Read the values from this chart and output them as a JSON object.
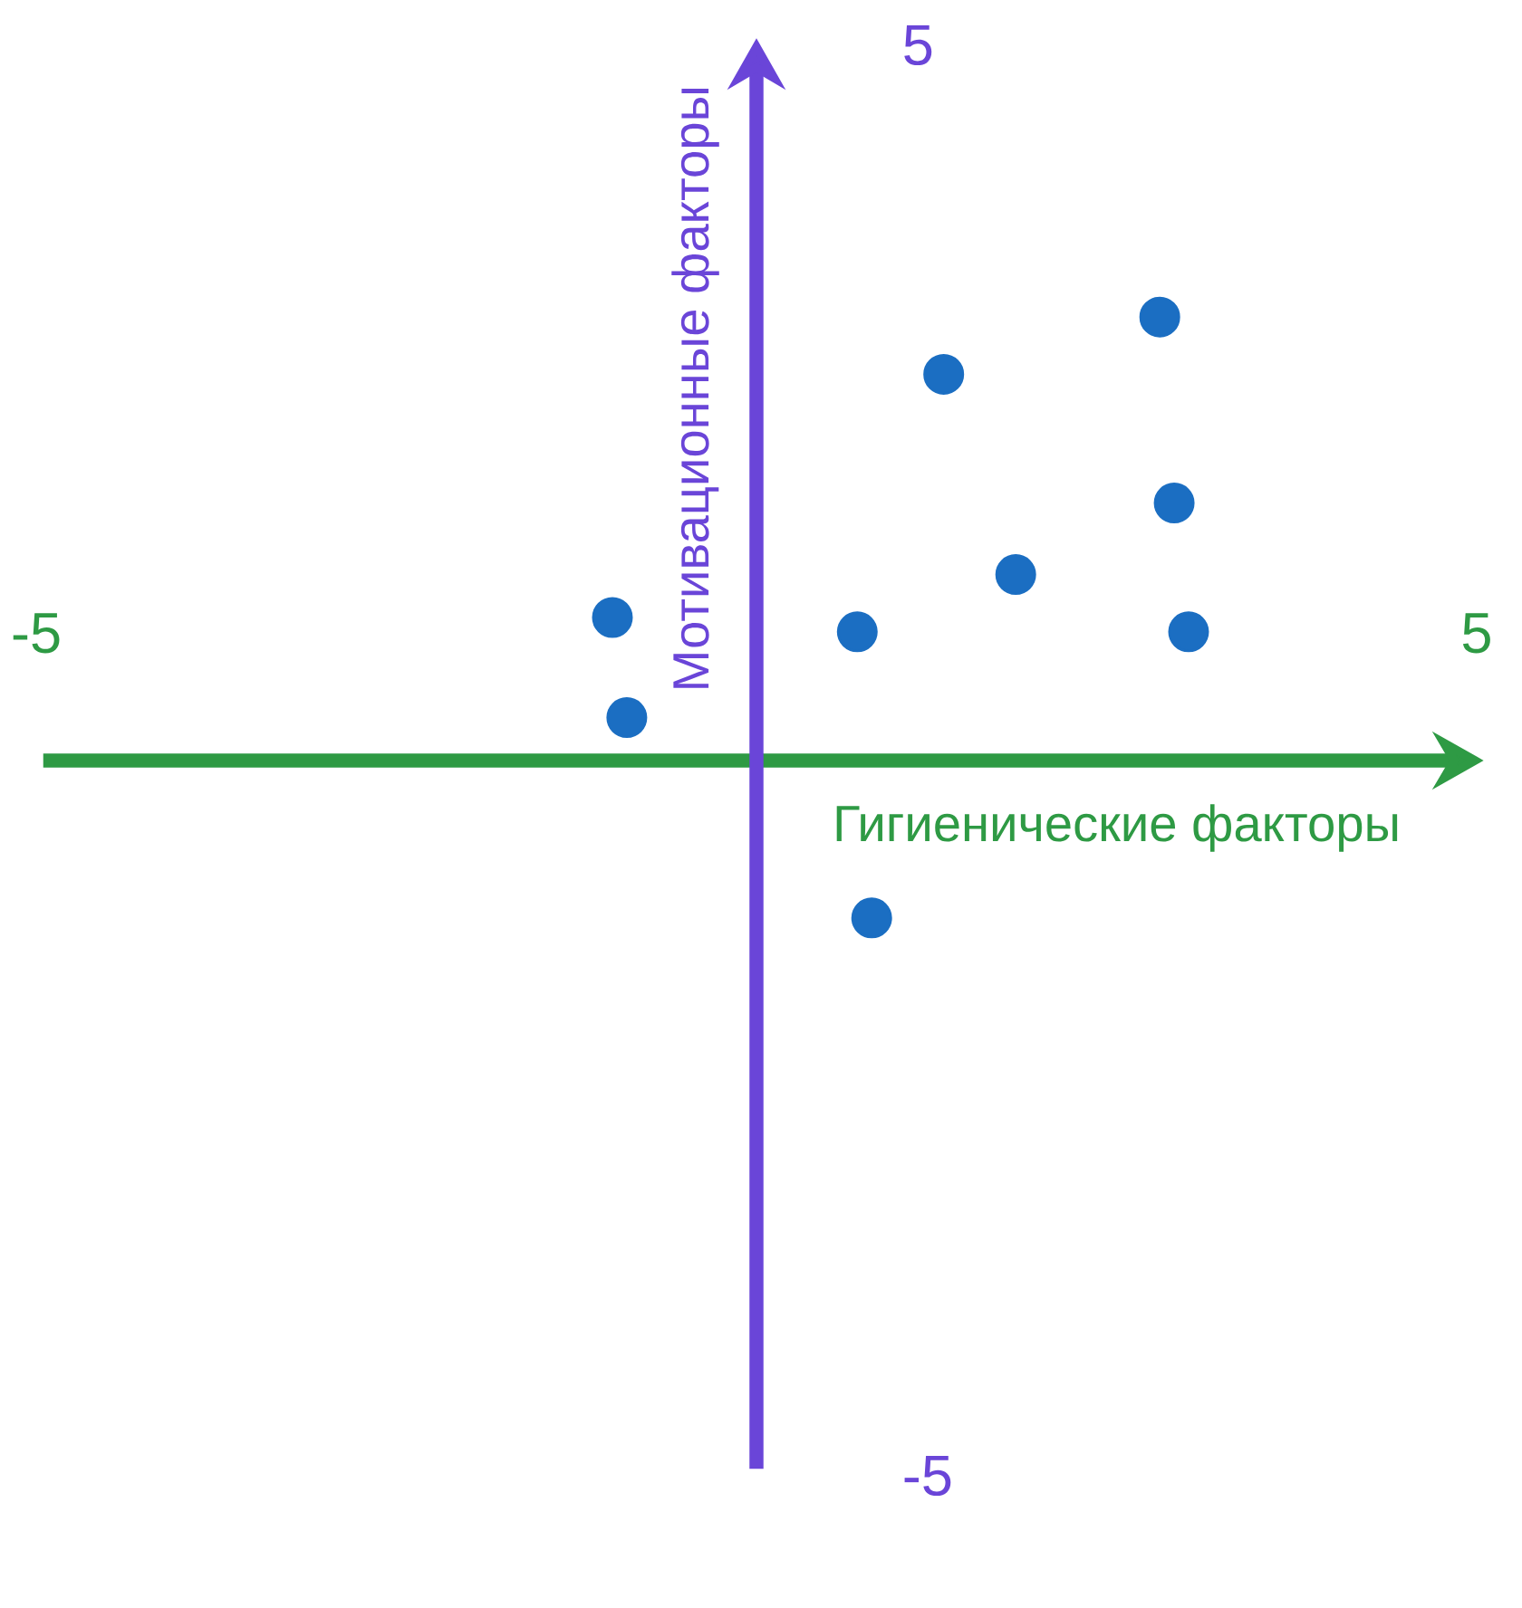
{
  "chart_data": {
    "type": "scatter",
    "xlabel": "Гигиенические факторы",
    "ylabel": "Мотивационные факторы",
    "x": [
      -1.0,
      -0.9,
      0.7,
      1.3,
      1.8,
      2.8,
      2.9,
      3.0,
      0.8
    ],
    "values": [
      1.0,
      0.3,
      0.9,
      2.7,
      1.3,
      3.1,
      1.8,
      0.9,
      -1.1
    ],
    "color": "#1b6ec2",
    "marker": "circle",
    "xlim": [
      -5,
      5
    ],
    "ylim": [
      -5,
      5
    ],
    "xticks": [
      -5,
      5
    ],
    "yticks": [
      -5,
      5
    ]
  }
}
